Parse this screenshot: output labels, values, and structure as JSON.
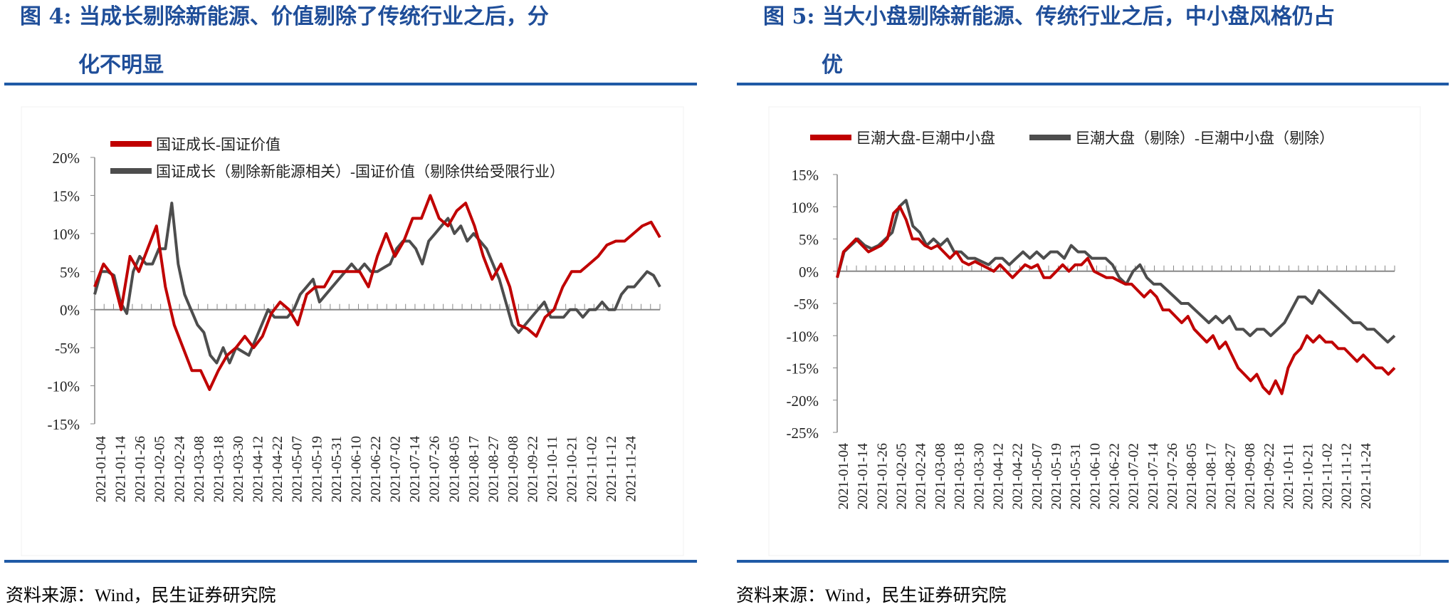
{
  "figures": [
    {
      "title_line1": "图 4: 当成长剔除新能源、价值剔除了传统行业之后，分",
      "title_line2": "化不明显",
      "source": "资料来源：Wind，民生证券研究院"
    },
    {
      "title_line1": "图 5: 当大小盘剔除新能源、传统行业之后，中小盘风格仍占",
      "title_line2": "优",
      "source": "资料来源：Wind，民生证券研究院"
    }
  ],
  "colors": {
    "title": "#1F4E99",
    "red": "#C00000",
    "gray": "#4D4D4D"
  },
  "chart_data": [
    {
      "type": "line",
      "title": "",
      "ylim": [
        -15,
        20
      ],
      "yticks": [
        "20%",
        "15%",
        "10%",
        "5%",
        "0%",
        "-5%",
        "-10%",
        "-15%"
      ],
      "x_ticks": [
        "2021-01-04",
        "2021-01-14",
        "2021-01-26",
        "2021-02-05",
        "2021-02-24",
        "2021-03-08",
        "2021-03-18",
        "2021-03-30",
        "2021-04-12",
        "2021-04-22",
        "2021-05-07",
        "2021-05-19",
        "2021-05-31",
        "2021-06-10",
        "2021-06-22",
        "2021-07-02",
        "2021-07-14",
        "2021-07-26",
        "2021-08-05",
        "2021-08-17",
        "2021-08-27",
        "2021-09-08",
        "2021-09-22",
        "2021-10-11",
        "2021-10-21",
        "2021-11-02",
        "2021-11-12",
        "2021-11-24"
      ],
      "series": [
        {
          "name": "国证成长-国证价值",
          "color": "#C00000",
          "values": [
            3,
            6,
            4.5,
            0,
            7,
            5,
            8,
            11,
            3,
            -2,
            -5,
            -8,
            -8,
            -10.5,
            -8,
            -6,
            -5,
            -3.5,
            -5,
            -3.5,
            -0.5,
            1,
            0,
            -2,
            2,
            3,
            3,
            5,
            5,
            5,
            5,
            3,
            7,
            10,
            7,
            9,
            12,
            12,
            15,
            12,
            11,
            13,
            14,
            11,
            7,
            4,
            6,
            3,
            -2,
            -2.5,
            -3.5,
            -1,
            0,
            3,
            5,
            5,
            6,
            7,
            8.5,
            9,
            9,
            10,
            11,
            11.5,
            9.5
          ]
        },
        {
          "name": "国证成长（剔除新能源相关）-国证价值（剔除供给受限行业）",
          "color": "#4D4D4D",
          "values": [
            2,
            5,
            5,
            4.5,
            1,
            -0.5,
            5,
            7,
            6,
            6,
            8,
            8,
            14,
            6,
            2,
            0,
            -2,
            -3,
            -6,
            -7,
            -5,
            -7,
            -5,
            -5.5,
            -6,
            -4,
            -2,
            0,
            -1,
            -1,
            -1,
            0,
            2,
            3,
            4,
            1,
            2,
            3,
            4,
            5,
            6,
            5,
            6,
            5,
            5,
            5.5,
            6,
            8,
            9,
            9,
            8,
            6,
            9,
            10,
            11,
            12,
            10,
            11,
            9,
            10,
            9,
            8,
            6,
            4,
            1,
            -2,
            -3,
            -2,
            -1,
            0,
            1,
            -1,
            -1,
            -1,
            0,
            0,
            -1,
            0,
            0,
            1,
            0,
            0,
            2,
            3,
            3,
            4,
            5,
            4.5,
            3
          ]
        }
      ]
    },
    {
      "type": "line",
      "title": "",
      "ylim": [
        -25,
        15
      ],
      "yticks": [
        "15%",
        "10%",
        "5%",
        "0%",
        "-5%",
        "-10%",
        "-15%",
        "-20%",
        "-25%"
      ],
      "x_ticks": [
        "2021-01-04",
        "2021-01-14",
        "2021-01-26",
        "2021-02-05",
        "2021-02-24",
        "2021-03-08",
        "2021-03-18",
        "2021-03-30",
        "2021-04-12",
        "2021-04-22",
        "2021-05-07",
        "2021-05-19",
        "2021-05-31",
        "2021-06-10",
        "2021-06-22",
        "2021-07-02",
        "2021-07-14",
        "2021-07-26",
        "2021-08-05",
        "2021-08-17",
        "2021-08-27",
        "2021-09-08",
        "2021-09-22",
        "2021-10-11",
        "2021-10-21",
        "2021-11-02",
        "2021-11-12",
        "2021-11-24"
      ],
      "series": [
        {
          "name": "巨潮大盘-巨潮中小盘",
          "color": "#C00000",
          "values": [
            -1,
            3,
            4,
            5,
            4,
            3,
            3.5,
            4,
            5,
            9,
            10,
            8,
            5,
            5,
            4,
            3.5,
            4,
            3,
            2,
            3,
            1.5,
            1,
            1.5,
            1,
            0.5,
            0,
            1,
            0,
            -1,
            0,
            1,
            0.5,
            1,
            -1,
            -1,
            0,
            1,
            0,
            1,
            1,
            2,
            0,
            -0.5,
            -1,
            -1,
            -1.5,
            -2,
            -2,
            -3,
            -4,
            -3,
            -4,
            -6,
            -6,
            -7,
            -8,
            -7,
            -9,
            -10,
            -11,
            -10,
            -12,
            -11,
            -13,
            -15,
            -16,
            -17,
            -16,
            -18,
            -19,
            -17,
            -19,
            -15,
            -13,
            -12,
            -10,
            -11,
            -10,
            -11,
            -11,
            -12,
            -12,
            -13,
            -14,
            -13,
            -14,
            -15,
            -15,
            -16,
            -15
          ]
        },
        {
          "name": "巨潮大盘（剔除）-巨潮中小盘（剔除）",
          "color": "#4D4D4D",
          "values": [
            -1,
            3,
            4,
            5,
            4,
            3.5,
            4,
            5,
            6,
            10,
            11,
            7,
            6,
            4,
            5,
            4,
            5,
            3,
            3,
            2,
            2,
            1.5,
            1,
            2,
            2,
            1,
            2,
            3,
            2,
            3,
            2,
            3,
            3,
            2,
            4,
            3,
            3,
            2,
            2,
            2,
            1,
            -1,
            -2,
            0,
            1,
            -1,
            -2,
            -2,
            -3,
            -4,
            -5,
            -5,
            -6,
            -7,
            -8,
            -7,
            -8,
            -7,
            -9,
            -9,
            -10,
            -9,
            -9,
            -10,
            -9,
            -8,
            -6,
            -4,
            -4,
            -5,
            -3,
            -4,
            -5,
            -6,
            -7,
            -8,
            -8,
            -9,
            -9,
            -10,
            -11,
            -10
          ]
        }
      ]
    }
  ]
}
